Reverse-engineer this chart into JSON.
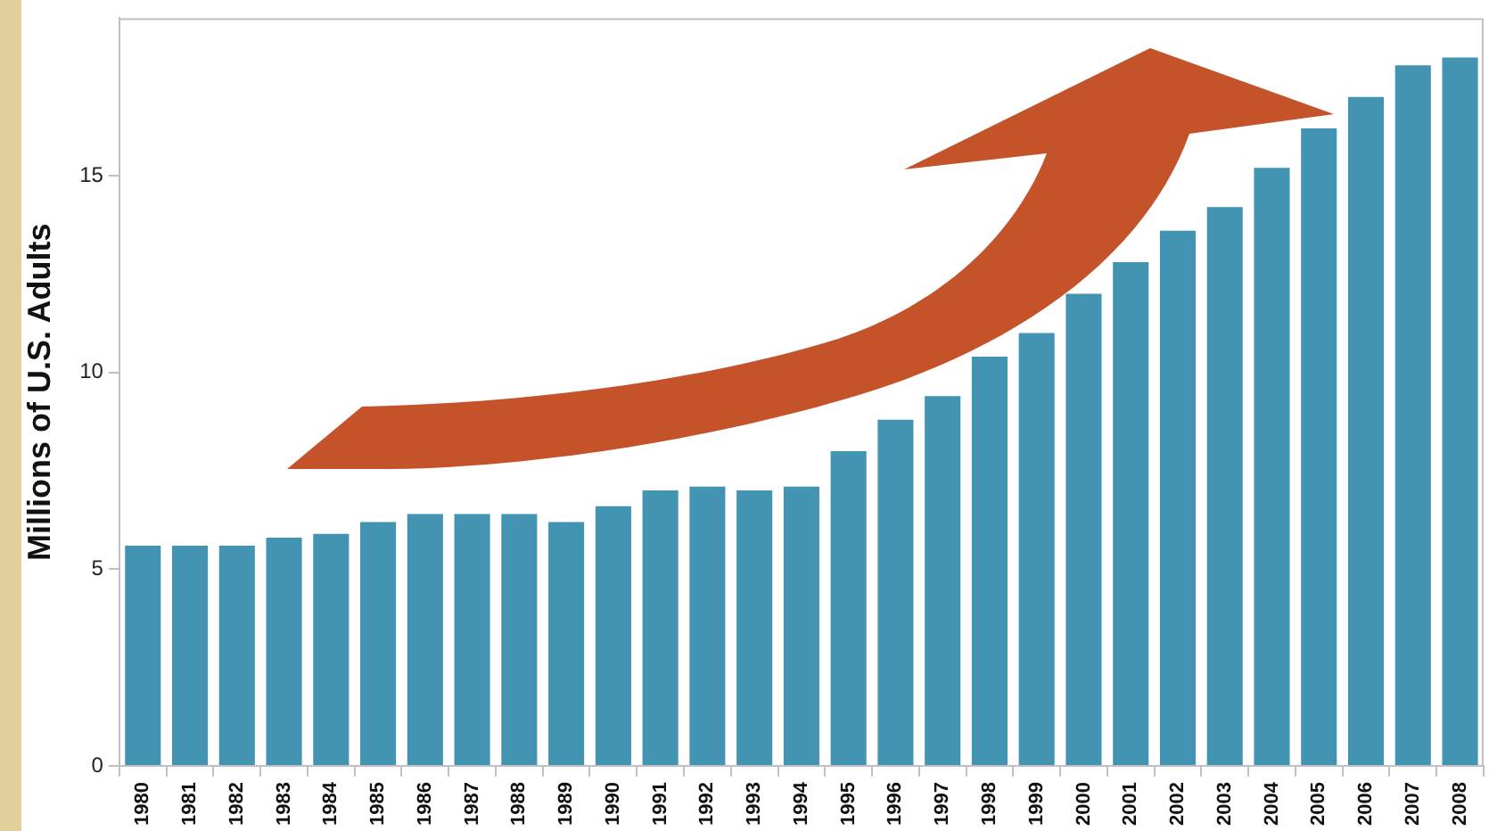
{
  "chart_data": {
    "type": "bar",
    "ylabel": "Millions of U.S. Adults",
    "categories": [
      "1980",
      "1981",
      "1982",
      "1983",
      "1984",
      "1985",
      "1986",
      "1987",
      "1988",
      "1989",
      "1990",
      "1991",
      "1992",
      "1993",
      "1994",
      "1995",
      "1996",
      "1997",
      "1998",
      "1999",
      "2000",
      "2001",
      "2002",
      "2003",
      "2004",
      "2005",
      "2006",
      "2007",
      "2008"
    ],
    "values": [
      5.6,
      5.6,
      5.6,
      5.8,
      5.9,
      6.2,
      6.4,
      6.4,
      6.4,
      6.2,
      6.6,
      7.0,
      7.1,
      7.0,
      7.1,
      8.0,
      8.8,
      9.4,
      10.4,
      11.0,
      12.0,
      12.8,
      13.6,
      14.2,
      15.2,
      16.2,
      17.0,
      17.8,
      18.0
    ],
    "color": "#4394b2",
    "ylim": [
      0,
      19
    ],
    "yticks": [
      0,
      5,
      10,
      15
    ],
    "legend": false
  }
}
